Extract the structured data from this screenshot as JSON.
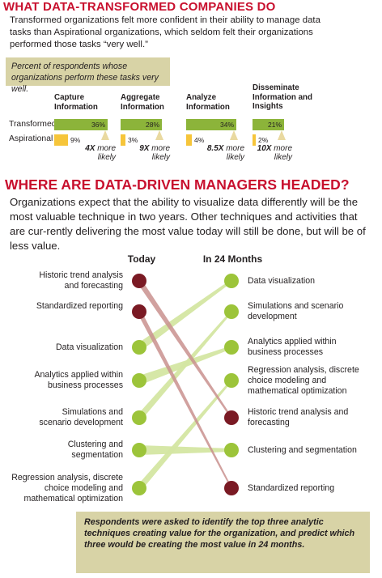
{
  "section1": {
    "title": "WHAT DATA-TRANSFORMED COMPANIES DO",
    "intro": "Transformed organizations felt more confident in their ability to manage data tasks than Aspirational organizations, which seldom felt their organizations performed those tasks “very well.”",
    "note": "Percent of respondents whose organizations perform these tasks very well."
  },
  "section2": {
    "title": "WHERE ARE DATA-DRIVEN MANAGERS HEADED?",
    "intro": "Organizations expect that the ability to visualize data differently will be the most valuable technique in two years. Other techniques and activities that are cur-rently delivering the most value today will still be done, but will be of less value.",
    "note": "Respondents were asked to identify the top three analytic techniques creating value for the organization, and predict which three would be creating the most value in 24 months."
  },
  "colors": {
    "title_red": "#c8102e",
    "transformed_green": "#8cb43a",
    "aspirational_yellow": "#f6c53a",
    "dot_green": "#9cc43a",
    "dot_maroon": "#7a1a24",
    "band_green": "#d4e6a2",
    "band_maroon": "#c9908e",
    "note_bg": "#d8d3a6"
  },
  "chart_data": [
    {
      "type": "bar",
      "title": "",
      "row_labels": [
        "Transformed",
        "Aspirational"
      ],
      "categories": [
        "Capture Information",
        "Aggregate Information",
        "Analyze Information",
        "Disseminate Information and Insights"
      ],
      "series": [
        {
          "name": "Transformed",
          "values": [
            36,
            28,
            34,
            21
          ],
          "labels": [
            "36%",
            "28%",
            "34%",
            "21%"
          ]
        },
        {
          "name": "Aspirational",
          "values": [
            9,
            3,
            4,
            2
          ],
          "labels": [
            "9%",
            "3%",
            "4%",
            "2%"
          ]
        }
      ],
      "multipliers": [
        {
          "factor": "4X",
          "text": "more likely"
        },
        {
          "factor": "9X",
          "text": "more likely"
        },
        {
          "factor": "8.5X",
          "text": "more likely"
        },
        {
          "factor": "10X",
          "text": "more likely"
        }
      ]
    },
    {
      "type": "slope",
      "left_title": "Today",
      "right_title": "In 24 Months",
      "left_items": [
        "Historic trend analysis and forecasting",
        "Standardized reporting",
        "Data visualization",
        "Analytics applied within business processes",
        "Simulations and scenario development",
        "Clustering and segmentation",
        "Regression analysis, discrete choice modeling and mathematical optimization"
      ],
      "right_items": [
        "Data visualization",
        "Simulations and scenario development",
        "Analytics applied within business processes",
        "Regression analysis, discrete choice modeling and mathematical optimization",
        "Historic trend analysis and forecasting",
        "Clustering and segmentation",
        "Standardized reporting"
      ],
      "left_rank": [
        1,
        2,
        3,
        4,
        5,
        6,
        7
      ],
      "right_rank": [
        5,
        7,
        1,
        3,
        2,
        6,
        4
      ],
      "declining": [
        "Historic trend analysis and forecasting",
        "Standardized reporting"
      ]
    }
  ]
}
